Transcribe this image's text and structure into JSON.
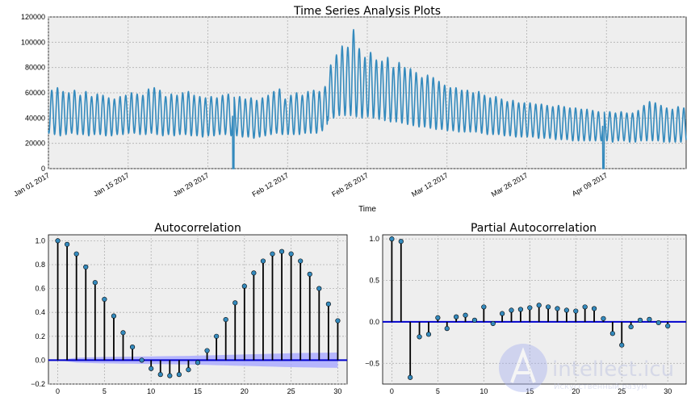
{
  "figure": {
    "background": "#ffffff",
    "axes_background": "#eeeeee",
    "grid_color": "#b0b0b0"
  },
  "chart_data": [
    {
      "type": "line",
      "title": "Time Series Analysis Plots",
      "xlabel": "Time",
      "ylabel": "",
      "ylim": [
        0,
        120000
      ],
      "yticks": [
        0,
        20000,
        40000,
        60000,
        80000,
        100000,
        120000
      ],
      "ytick_labels": [
        "0",
        "20000",
        "40000",
        "60000",
        "80000",
        "100000",
        "120000"
      ],
      "xlim": [
        "2017-01-01",
        "2017-04-23"
      ],
      "xticks": [
        "2017-01-01",
        "2017-01-15",
        "2017-01-29",
        "2017-02-12",
        "2017-02-26",
        "2017-03-12",
        "2017-03-26",
        "2017-04-09"
      ],
      "xtick_labels": [
        "Jan 01 2017",
        "Jan 15 2017",
        "Jan 29 2017",
        "Feb 12 2017",
        "Feb 26 2017",
        "Mar 12 2017",
        "Mar 26 2017",
        "Apr 09 2017"
      ],
      "grid": true,
      "line_color": "#348abd",
      "frequency": "hourly",
      "series_daily": {
        "name": "",
        "x_start": "2017-01-01",
        "daily_max": [
          62000,
          64000,
          61000,
          60000,
          62000,
          58000,
          61000,
          57000,
          59000,
          58000,
          56000,
          55000,
          57000,
          58000,
          60000,
          59000,
          58000,
          63000,
          64000,
          62000,
          57000,
          59000,
          58000,
          60000,
          61000,
          58000,
          57000,
          56000,
          57000,
          56000,
          58000,
          59000,
          57000,
          57000,
          55000,
          56000,
          54000,
          56000,
          58000,
          61000,
          63000,
          55000,
          58000,
          60000,
          58000,
          61000,
          62000,
          61000,
          65000,
          82000,
          90000,
          97000,
          96000,
          110000,
          95000,
          88000,
          92000,
          86000,
          85000,
          88000,
          80000,
          84000,
          80000,
          79000,
          76000,
          72000,
          74000,
          72000,
          69000,
          66000,
          64000,
          64000,
          62000,
          62000,
          60000,
          61000,
          58000,
          56000,
          57000,
          55000,
          53000,
          54000,
          52000,
          52000,
          52000,
          51000,
          51000,
          50000,
          49000,
          50000,
          49000,
          48000,
          48000,
          47000,
          47000,
          46000,
          45000,
          45000,
          45000,
          44000,
          45000,
          44000,
          44000,
          46000,
          50000,
          53000,
          52000,
          50000,
          48000,
          47000,
          49000,
          48000,
          46000
        ],
        "daily_min": [
          28000,
          27000,
          26000,
          27000,
          28000,
          27000,
          27000,
          26000,
          27000,
          27000,
          26000,
          26000,
          27000,
          27000,
          28000,
          28000,
          27000,
          27000,
          28000,
          27000,
          26000,
          27000,
          26000,
          27000,
          27000,
          26000,
          26000,
          25000,
          26000,
          26000,
          27000,
          27000,
          26000,
          26000,
          25000,
          25000,
          24000,
          25000,
          26000,
          27000,
          28000,
          27000,
          27000,
          27000,
          27000,
          28000,
          28000,
          28000,
          30000,
          38000,
          40000,
          42000,
          42000,
          42000,
          41000,
          40000,
          41000,
          40000,
          39000,
          38000,
          37000,
          37000,
          36000,
          35000,
          34000,
          33000,
          33000,
          32000,
          31000,
          31000,
          30000,
          30000,
          29000,
          29000,
          29000,
          29000,
          28000,
          27000,
          27000,
          27000,
          26000,
          26000,
          25000,
          25000,
          25000,
          25000,
          24000,
          24000,
          24000,
          23000,
          23000,
          23000,
          22000,
          22000,
          22000,
          22000,
          22000,
          22000,
          22000,
          21000,
          22000,
          22000,
          21000,
          21000,
          22000,
          22000,
          22000,
          22000,
          21000,
          21000,
          21000,
          21000,
          21000
        ],
        "dropouts": [
          {
            "date": "2017-02-02",
            "min": 0
          },
          {
            "date": "2017-04-08",
            "min": 0
          }
        ]
      }
    },
    {
      "type": "stem",
      "title": "Autocorrelation",
      "xlim": [
        -1,
        31
      ],
      "ylim": [
        -0.2,
        1.05
      ],
      "xticks": [
        0,
        5,
        10,
        15,
        20,
        25,
        30
      ],
      "xtick_labels": [
        "0",
        "5",
        "10",
        "15",
        "20",
        "25",
        "30"
      ],
      "yticks": [
        -0.2,
        0.0,
        0.2,
        0.4,
        0.6,
        0.8,
        1.0
      ],
      "ytick_labels": [
        "−0.2",
        "0.0",
        "0.2",
        "0.4",
        "0.6",
        "0.8",
        "1.0"
      ],
      "grid": true,
      "lags": [
        0,
        1,
        2,
        3,
        4,
        5,
        6,
        7,
        8,
        9,
        10,
        11,
        12,
        13,
        14,
        15,
        16,
        17,
        18,
        19,
        20,
        21,
        22,
        23,
        24,
        25,
        26,
        27,
        28,
        29,
        30
      ],
      "values": [
        1.0,
        0.97,
        0.89,
        0.78,
        0.65,
        0.51,
        0.37,
        0.23,
        0.11,
        0.0,
        -0.07,
        -0.12,
        -0.13,
        -0.12,
        -0.08,
        -0.02,
        0.08,
        0.2,
        0.34,
        0.48,
        0.62,
        0.73,
        0.83,
        0.89,
        0.91,
        0.89,
        0.83,
        0.72,
        0.6,
        0.47,
        0.33
      ],
      "confidence_band": [
        0.0,
        0.01,
        0.02,
        0.023,
        0.025,
        0.027,
        0.028,
        0.029,
        0.03,
        0.031,
        0.032,
        0.033,
        0.034,
        0.035,
        0.036,
        0.038,
        0.04,
        0.042,
        0.044,
        0.046,
        0.048,
        0.05,
        0.052,
        0.054,
        0.056,
        0.058,
        0.06,
        0.061,
        0.062,
        0.063,
        0.064
      ],
      "stem_color": "#000000",
      "marker_color": "#348abd",
      "zero_line_color": "#0000cc",
      "band_color": "#aaaaff"
    },
    {
      "type": "stem",
      "title": "Partial Autocorrelation",
      "xlim": [
        -1,
        32
      ],
      "ylim": [
        -0.75,
        1.05
      ],
      "xticks": [
        0,
        5,
        10,
        15,
        20,
        25,
        30
      ],
      "xtick_labels": [
        "0",
        "5",
        "10",
        "15",
        "20",
        "25",
        "30"
      ],
      "yticks": [
        -0.5,
        0.0,
        0.5,
        1.0
      ],
      "ytick_labels": [
        "−0.5",
        "0.0",
        "0.5",
        "1.0"
      ],
      "grid": true,
      "lags": [
        0,
        1,
        2,
        3,
        4,
        5,
        6,
        7,
        8,
        9,
        10,
        11,
        12,
        13,
        14,
        15,
        16,
        17,
        18,
        19,
        20,
        21,
        22,
        23,
        24,
        25,
        26,
        27,
        28,
        29,
        30
      ],
      "values": [
        1.0,
        0.97,
        -0.67,
        -0.18,
        -0.15,
        0.05,
        -0.08,
        0.06,
        0.08,
        0.02,
        0.18,
        -0.02,
        0.1,
        0.14,
        0.15,
        0.17,
        0.2,
        0.18,
        0.16,
        0.14,
        0.13,
        0.18,
        0.16,
        0.04,
        -0.14,
        -0.28,
        -0.06,
        0.02,
        0.03,
        -0.01,
        -0.05
      ],
      "stem_color": "#000000",
      "marker_color": "#348abd",
      "zero_line_color": "#0000cc"
    }
  ],
  "watermark": {
    "brand": "intellect.icu",
    "tagline": "Искусственный разум",
    "color": "#4455cc"
  }
}
